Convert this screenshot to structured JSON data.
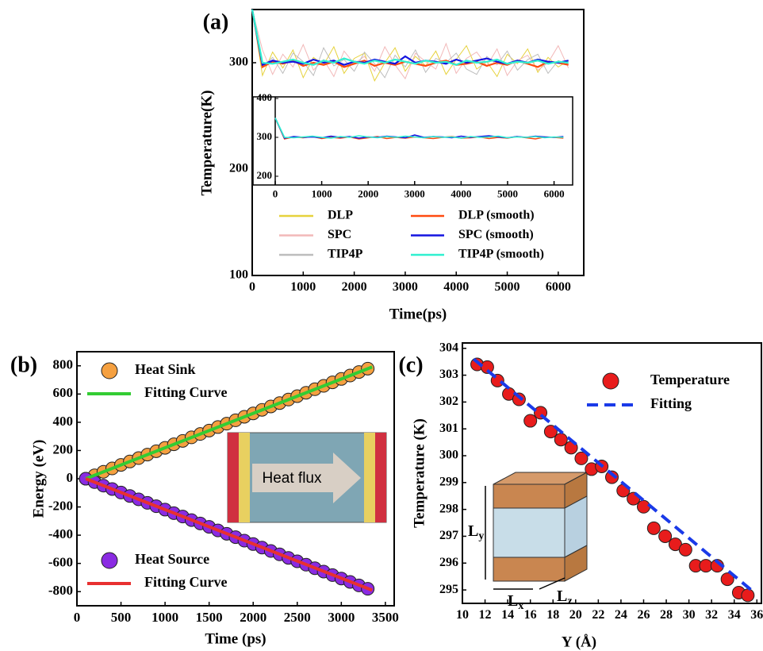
{
  "chart_data": [
    {
      "type": "line",
      "panel_label": "(a)",
      "xlabel": "Time(ps)",
      "ylabel": "Temperature(K)",
      "xlim": [
        0,
        6500
      ],
      "ylim": [
        100,
        350
      ],
      "xticks": [
        0,
        1000,
        2000,
        3000,
        4000,
        5000,
        6000
      ],
      "yticks": [
        100,
        200,
        300
      ],
      "x": [
        0,
        200,
        400,
        600,
        800,
        1000,
        1200,
        1400,
        1600,
        1800,
        2000,
        2200,
        2400,
        2600,
        2800,
        3000,
        3200,
        3400,
        3600,
        3800,
        4000,
        4200,
        4400,
        4600,
        4800,
        5000,
        5200,
        5400,
        5600,
        5800,
        6000,
        6200
      ],
      "series": [
        {
          "name": "DLP",
          "color": "#e6d23c",
          "values": [
            350,
            288,
            310,
            295,
            312,
            286,
            305,
            298,
            315,
            290,
            304,
            309,
            283,
            300,
            314,
            292,
            306,
            297,
            311,
            289,
            303,
            316,
            294,
            301,
            287,
            308,
            299,
            313,
            291,
            305,
            296,
            302
          ]
        },
        {
          "name": "SPC",
          "color": "#f2b8b8",
          "values": [
            350,
            312,
            289,
            308,
            296,
            317,
            293,
            303,
            287,
            311,
            299,
            306,
            292,
            315,
            298,
            285,
            309,
            301,
            294,
            318,
            290,
            304,
            310,
            297,
            313,
            288,
            302,
            307,
            293,
            300,
            316,
            295
          ]
        },
        {
          "name": "TIP4P",
          "color": "#bdbdbd",
          "values": [
            350,
            296,
            305,
            290,
            309,
            301,
            288,
            314,
            297,
            303,
            292,
            310,
            299,
            286,
            307,
            296,
            312,
            291,
            304,
            300,
            309,
            294,
            289,
            306,
            298,
            311,
            293,
            303,
            308,
            290,
            302,
            299
          ]
        },
        {
          "name": "DLP (smooth)",
          "color": "#ff4a10",
          "values": [
            350,
            296,
            301,
            299,
            302,
            297,
            300,
            298,
            301,
            296,
            299,
            302,
            297,
            300,
            298,
            301,
            299,
            297,
            300,
            302,
            298,
            299,
            301,
            297,
            300,
            298,
            302,
            299,
            296,
            301,
            300,
            298
          ]
        },
        {
          "name": "SPC (smooth)",
          "color": "#1414e0",
          "values": [
            350,
            298,
            302,
            300,
            301,
            299,
            303,
            300,
            302,
            298,
            301,
            300,
            303,
            301,
            299,
            306,
            300,
            302,
            301,
            299,
            303,
            300,
            302,
            304,
            301,
            299,
            302,
            300,
            303,
            301,
            300,
            302
          ]
        },
        {
          "name": "TIP4P (smooth)",
          "color": "#30f0d0",
          "values": [
            350,
            300,
            299,
            301,
            303,
            300,
            298,
            302,
            300,
            304,
            301,
            299,
            302,
            300,
            303,
            301,
            299,
            302,
            300,
            301,
            298,
            302,
            300,
            301,
            303,
            299,
            301,
            300,
            302,
            299,
            301,
            300
          ]
        }
      ],
      "inset": {
        "xlim": [
          0,
          6400
        ],
        "ylim": [
          200,
          400
        ],
        "xticks": [
          0,
          1000,
          2000,
          3000,
          4000,
          5000,
          6000
        ],
        "yticks": [
          200,
          300,
          400
        ]
      }
    },
    {
      "type": "scatter",
      "panel_label": "(b)",
      "xlabel": "Time (ps)",
      "ylabel": "Energy (eV)",
      "xlim": [
        0,
        3600
      ],
      "ylim": [
        -900,
        900
      ],
      "xticks": [
        0,
        500,
        1000,
        1500,
        2000,
        2500,
        3000,
        3500
      ],
      "yticks": [
        -800,
        -600,
        -400,
        -200,
        0,
        200,
        400,
        600,
        800
      ],
      "inset_label": "Heat flux",
      "series": [
        {
          "name": "Heat Sink",
          "mode": "markers",
          "color": "#f5a040",
          "x": [
            100,
            200,
            300,
            400,
            500,
            600,
            700,
            800,
            900,
            1000,
            1100,
            1200,
            1300,
            1400,
            1500,
            1600,
            1700,
            1800,
            1900,
            2000,
            2100,
            2200,
            2300,
            2400,
            2500,
            2600,
            2700,
            2800,
            2900,
            3000,
            3100,
            3200,
            3300
          ],
          "values": [
            0,
            24,
            49,
            73,
            98,
            122,
            146,
            171,
            195,
            219,
            244,
            268,
            293,
            317,
            341,
            366,
            390,
            414,
            439,
            463,
            488,
            512,
            536,
            561,
            585,
            609,
            634,
            658,
            683,
            707,
            731,
            756,
            780
          ]
        },
        {
          "name": "Fitting Curve",
          "mode": "line",
          "color": "#33cc33",
          "x": [
            100,
            3350
          ],
          "values": [
            0,
            792
          ]
        },
        {
          "name": "Heat Source",
          "mode": "markers",
          "color": "#8a2be2",
          "x": [
            100,
            200,
            300,
            400,
            500,
            600,
            700,
            800,
            900,
            1000,
            1100,
            1200,
            1300,
            1400,
            1500,
            1600,
            1700,
            1800,
            1900,
            2000,
            2100,
            2200,
            2300,
            2400,
            2500,
            2600,
            2700,
            2800,
            2900,
            3000,
            3100,
            3200,
            3300
          ],
          "values": [
            0,
            -24,
            -49,
            -73,
            -98,
            -122,
            -146,
            -171,
            -195,
            -219,
            -244,
            -268,
            -293,
            -317,
            -341,
            -366,
            -390,
            -414,
            -439,
            -463,
            -488,
            -512,
            -536,
            -561,
            -585,
            -609,
            -634,
            -658,
            -683,
            -707,
            -731,
            -756,
            -780
          ]
        },
        {
          "name": "Fitting Curve",
          "mode": "line",
          "color": "#e83030",
          "x": [
            100,
            3350
          ],
          "values": [
            0,
            -790
          ]
        }
      ]
    },
    {
      "type": "scatter",
      "panel_label": "(c)",
      "xlabel": "Y (Å)",
      "ylabel": "Temperature (K)",
      "xlim": [
        10,
        36.4
      ],
      "ylim": [
        294.5,
        304.2
      ],
      "xticks": [
        10,
        12,
        14,
        16,
        18,
        20,
        22,
        24,
        26,
        28,
        30,
        32,
        34,
        36
      ],
      "yticks": [
        295,
        296,
        297,
        298,
        299,
        300,
        301,
        302,
        303,
        304
      ],
      "inset_labels": [
        [
          "L",
          "y"
        ],
        [
          "L",
          "x"
        ],
        [
          "L",
          "z"
        ]
      ],
      "series": [
        {
          "name": "Temperature",
          "mode": "markers",
          "color": "#e81c1c",
          "x": [
            11.3,
            12.2,
            13.1,
            14.1,
            15.0,
            16.0,
            16.9,
            17.8,
            18.7,
            19.6,
            20.5,
            21.4,
            22.3,
            23.2,
            24.2,
            25.1,
            26.0,
            26.9,
            27.9,
            28.8,
            29.7,
            30.6,
            31.5,
            32.5,
            33.4,
            34.4,
            35.2
          ],
          "values": [
            303.4,
            303.3,
            302.8,
            302.3,
            302.1,
            301.3,
            301.6,
            300.9,
            300.6,
            300.3,
            299.9,
            299.5,
            299.6,
            299.2,
            298.7,
            298.4,
            298.1,
            297.3,
            297.0,
            296.7,
            296.5,
            295.9,
            295.9,
            295.9,
            295.4,
            294.9,
            294.8
          ]
        },
        {
          "name": "Fitting",
          "mode": "line",
          "dashed": true,
          "color": "#1a3ae8",
          "x": [
            11,
            35.5
          ],
          "values": [
            303.6,
            295.0
          ]
        }
      ]
    }
  ]
}
